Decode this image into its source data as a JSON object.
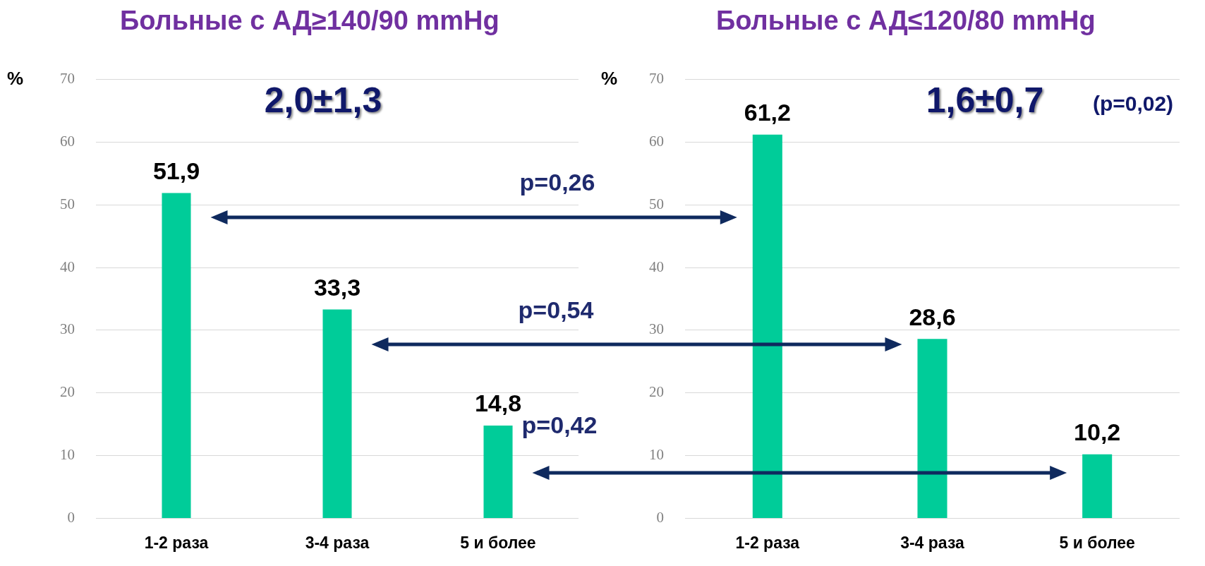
{
  "chart_data": [
    {
      "type": "bar",
      "title": "Больные с АД≥140/90 mmHg",
      "ylabel": "%",
      "categories": [
        "1-2 раза",
        "3-4 раза",
        "5 и более"
      ],
      "values": [
        51.9,
        33.3,
        14.8
      ],
      "value_labels": [
        "51,9",
        "33,3",
        "14,8"
      ],
      "color": "#00cc99",
      "ylim": [
        0,
        70
      ],
      "yticks": [
        0,
        10,
        20,
        30,
        40,
        50,
        60,
        70
      ],
      "grid": "y",
      "legend": false,
      "annotations": [
        "2,0±1,3",
        "p=0,26",
        "p=0,54",
        "p=0,42"
      ]
    },
    {
      "type": "bar",
      "title": "Больные с АД≤120/80 mmHg",
      "ylabel": "%",
      "categories": [
        "1-2 раза",
        "3-4 раза",
        "5 и более"
      ],
      "values": [
        61.2,
        28.6,
        10.2
      ],
      "value_labels": [
        "61,2",
        "28,6",
        "10,2"
      ],
      "color": "#00cc99",
      "ylim": [
        0,
        70
      ],
      "yticks": [
        0,
        10,
        20,
        30,
        40,
        50,
        60,
        70
      ],
      "grid": "y",
      "legend": false,
      "annotations": [
        "1,6±0,7",
        "(p=0,02)"
      ]
    }
  ]
}
